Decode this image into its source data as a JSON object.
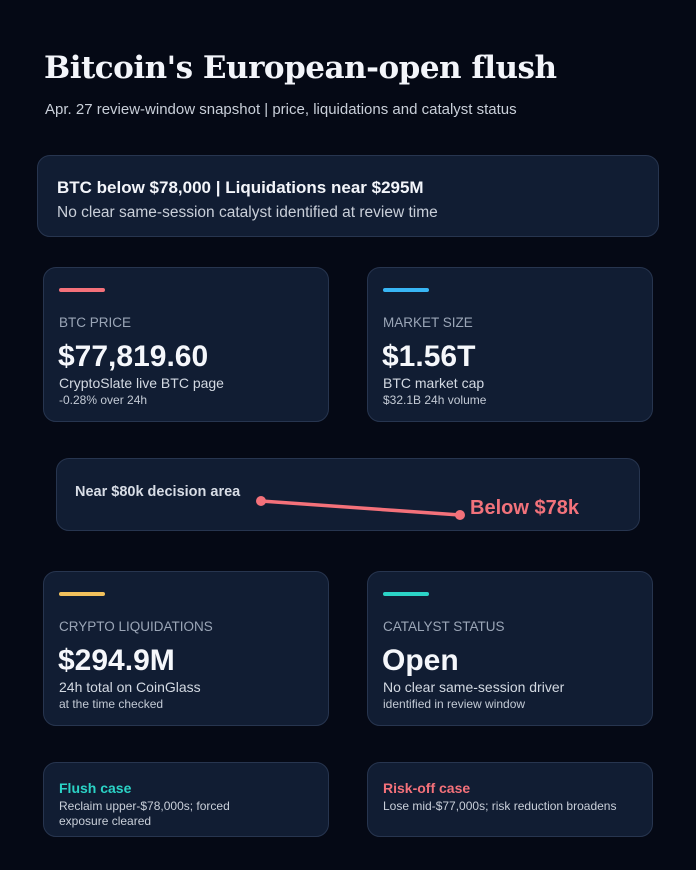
{
  "header": {
    "title": "Bitcoin's European-open flush",
    "subtitle": "Apr. 27 review-window snapshot | price, liquidations and catalyst status"
  },
  "summary": {
    "headline": "BTC below $78,000 | Liquidations near $295M",
    "detail": "No clear same-session catalyst identified at review time"
  },
  "cards": [
    {
      "label": "BTC PRICE",
      "value": "$77,819.60",
      "sub1": "CryptoSlate live BTC page",
      "sub2": "-0.28% over 24h",
      "accent": "#f4717a"
    },
    {
      "label": "MARKET SIZE",
      "value": "$1.56T",
      "sub1": "BTC market cap",
      "sub2": "$32.1B 24h volume",
      "accent": "#38b6f5"
    },
    {
      "label": "CRYPTO LIQUIDATIONS",
      "value": "$294.9M",
      "sub1": "24h total on CoinGlass",
      "sub2": "at the time checked",
      "accent": "#f2c15c"
    },
    {
      "label": "CATALYST STATUS",
      "value": "Open",
      "sub1": "No clear same-session driver",
      "sub2": "identified in review window",
      "accent": "#2bd3c6"
    }
  ],
  "price_move": {
    "start_label": "Near $80k decision area",
    "end_label": "Below $78k",
    "color": "#f4717a"
  },
  "cases": [
    {
      "title": "Flush case",
      "text": "Reclaim upper-$78,000s; forced exposure cleared",
      "color": "#2bd3c6"
    },
    {
      "title": "Risk-off case",
      "text": "Lose mid-$77,000s; risk reduction broadens",
      "color": "#f4717a"
    }
  ]
}
